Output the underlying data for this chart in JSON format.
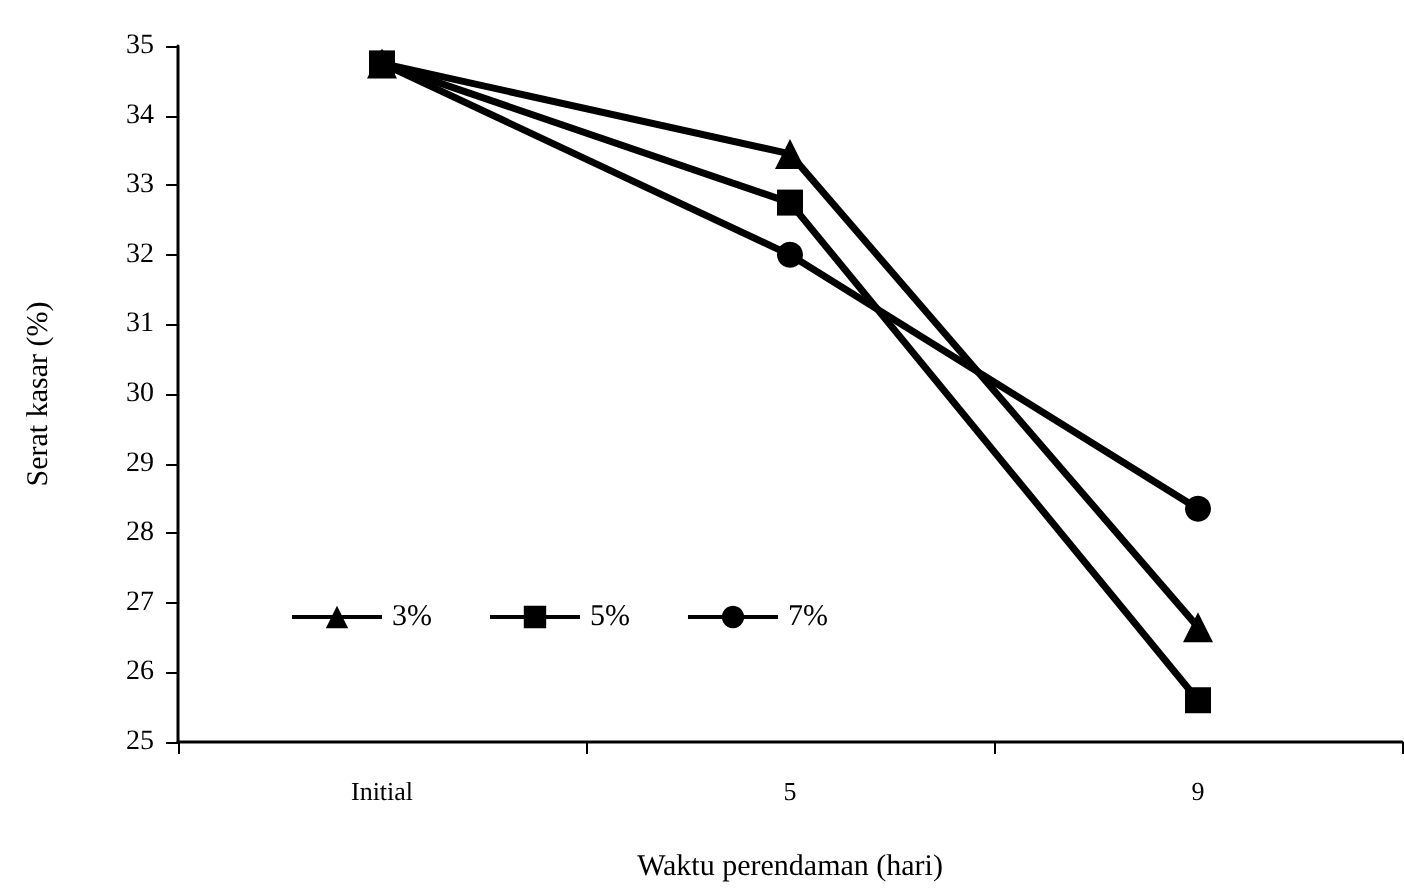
{
  "chart_data": {
    "type": "line",
    "xlabel": "Waktu perendaman (hari)",
    "ylabel": "Serat kasar (%)",
    "categories": [
      "Initial",
      "5",
      "9"
    ],
    "series": [
      {
        "name": "3%",
        "color": "#000000",
        "marker": "triangle",
        "values": [
          34.75,
          33.45,
          26.65
        ]
      },
      {
        "name": "5%",
        "color": "#000000",
        "marker": "square",
        "values": [
          34.75,
          32.75,
          25.6
        ]
      },
      {
        "name": "7%",
        "color": "#000000",
        "marker": "circle",
        "values": [
          34.75,
          32.0,
          28.35
        ]
      }
    ],
    "ylim": [
      25,
      35
    ],
    "yticks": [
      25,
      26,
      27,
      28,
      29,
      30,
      31,
      32,
      33,
      34,
      35
    ],
    "grid": false,
    "legend": "bottom left",
    "line_style": "solid"
  }
}
